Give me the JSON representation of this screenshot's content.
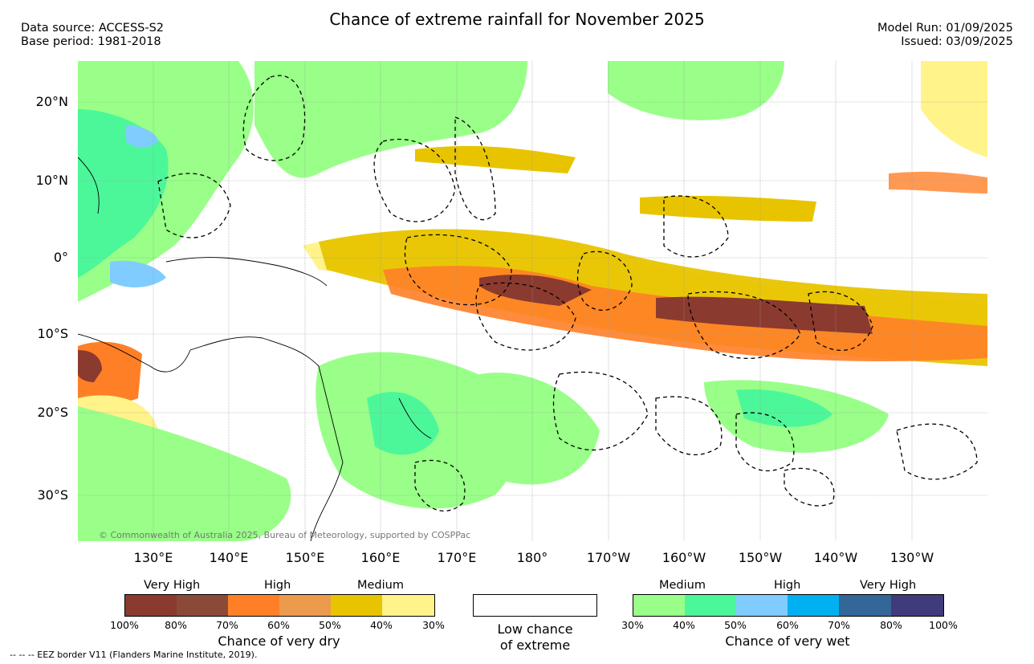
{
  "title": "Chance of extreme rainfall for November 2025",
  "data_source": "Data source: ACCESS-S2",
  "base_period": "Base period: 1981-2018",
  "model_run": "Model Run: 01/09/2025",
  "issued": "Issued: 03/09/2025",
  "lat_labels": [
    "20°N",
    "10°N",
    "0°",
    "10°S",
    "20°S",
    "30°S"
  ],
  "lon_labels": [
    "130°E",
    "140°E",
    "150°E",
    "160°E",
    "170°E",
    "180°",
    "170°W",
    "160°W",
    "150°W",
    "140°W",
    "130°W"
  ],
  "copyright": "© Commonwealth of Australia 2025, Bureau of Meteorology, supported by COSPPac",
  "legend": {
    "dry": {
      "title": "Chance of very dry",
      "categories": [
        "Very High",
        "High",
        "Medium"
      ],
      "ticks": [
        "100%",
        "80%",
        "70%",
        "60%",
        "50%",
        "40%",
        "30%"
      ],
      "colors": [
        "#8b3a2f",
        "#8b4a38",
        "#ff7f27",
        "#eb9b4b",
        "#e8c400",
        "#fff38a"
      ]
    },
    "low": {
      "line1": "Low chance",
      "line2": "of extreme"
    },
    "wet": {
      "title": "Chance of very wet",
      "categories": [
        "Medium",
        "High",
        "Very High"
      ],
      "ticks": [
        "30%",
        "40%",
        "50%",
        "60%",
        "70%",
        "80%",
        "100%"
      ],
      "colors": [
        "#99ff88",
        "#4cf79a",
        "#80ccff",
        "#00b0f0",
        "#336699",
        "#403b7a"
      ]
    }
  },
  "eez_note": "-- -- -- EEZ border V11 (Flanders Marine Institute, 2019)."
}
